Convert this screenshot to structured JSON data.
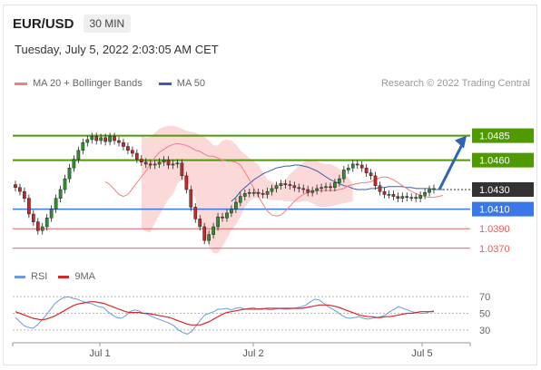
{
  "header": {
    "symbol": "EUR/USD",
    "timeframe": "30 MIN",
    "timestamp": "Tuesday, July 5, 2022 2:03:05 AM CET"
  },
  "legend": {
    "ma20_label": "MA 20 + Bollinger Bands",
    "ma50_label": "MA 50",
    "credit": "Research © 2022 Trading Central"
  },
  "rsi_legend": {
    "rsi_label": "RSI",
    "ma_label": "9MA"
  },
  "colors": {
    "resistance": "#4f9a00",
    "pivot": "#3b78e7",
    "support": "#e06060",
    "current": "#333333",
    "ma20": "#f08080",
    "ma50": "#3a5ea8",
    "bollinger": "#fbd5d5",
    "candle_up": "#2f8f2f",
    "candle_down": "#c62828",
    "arrow": "#2f64b4",
    "rsi": "#6a9be0",
    "rsi_ma": "#d62828"
  },
  "chart_data": [
    {
      "type": "candlestick",
      "title": "EUR/USD",
      "ylim": [
        1.0355,
        1.0505
      ],
      "x_ticks": [
        "Jul 1",
        "Jul 2",
        "Jul 5"
      ],
      "levels": [
        {
          "value": 1.0485,
          "label": "1.0485",
          "kind": "resistance"
        },
        {
          "value": 1.046,
          "label": "1.0460",
          "kind": "resistance"
        },
        {
          "value": 1.043,
          "label": "1.0430",
          "kind": "current"
        },
        {
          "value": 1.041,
          "label": "1.0410",
          "kind": "pivot"
        },
        {
          "value": 1.039,
          "label": "1.0390",
          "kind": "support"
        },
        {
          "value": 1.037,
          "label": "1.0370",
          "kind": "support"
        }
      ],
      "close": [
        1.0432,
        1.0428,
        1.0421,
        1.0405,
        1.0397,
        1.0388,
        1.0392,
        1.0401,
        1.041,
        1.0421,
        1.043,
        1.0441,
        1.0452,
        1.0461,
        1.047,
        1.0478,
        1.0481,
        1.0484,
        1.048,
        1.0483,
        1.0479,
        1.0484,
        1.048,
        1.0478,
        1.0474,
        1.047,
        1.0467,
        1.0461,
        1.0458,
        1.0456,
        1.0455,
        1.0456,
        1.0458,
        1.046,
        1.0455,
        1.0456,
        1.0457,
        1.0444,
        1.043,
        1.0412,
        1.04,
        1.0392,
        1.0378,
        1.0384,
        1.0392,
        1.0402,
        1.0401,
        1.0406,
        1.041,
        1.0417,
        1.0423,
        1.0426,
        1.0427,
        1.0427,
        1.0426,
        1.0425,
        1.0428,
        1.0431,
        1.0434,
        1.0436,
        1.0435,
        1.0434,
        1.0432,
        1.0431,
        1.043,
        1.0427,
        1.0429,
        1.0431,
        1.0432,
        1.0433,
        1.0432,
        1.0437,
        1.0441,
        1.045,
        1.0452,
        1.0456,
        1.0455,
        1.0452,
        1.0447,
        1.0444,
        1.0434,
        1.0428,
        1.0425,
        1.0425,
        1.0423,
        1.0421,
        1.0423,
        1.0422,
        1.0422,
        1.0421,
        1.0424,
        1.0427,
        1.043,
        1.0431
      ],
      "ma20": [
        1.0438,
        1.0435,
        1.043,
        1.0425,
        1.0423,
        1.0425,
        1.0431,
        1.0437,
        1.0443,
        1.0449,
        1.0456,
        1.0463,
        1.0468,
        1.0471,
        1.0474,
        1.0476,
        1.0477,
        1.0476,
        1.0475,
        1.0473,
        1.047,
        1.0469,
        1.0466,
        1.0464,
        1.0464,
        1.0462,
        1.046,
        1.0459,
        1.0459,
        1.0458,
        1.0455,
        1.0448,
        1.044,
        1.0431,
        1.0423,
        1.0415,
        1.0408,
        1.0404,
        1.0403,
        1.0404,
        1.0408,
        1.0413,
        1.0418,
        1.0422,
        1.0425,
        1.0427,
        1.0428,
        1.0429,
        1.0429,
        1.0429,
        1.0429,
        1.0429,
        1.043,
        1.0431,
        1.0434,
        1.0435,
        1.0436,
        1.0437,
        1.0437,
        1.0438,
        1.044,
        1.0442,
        1.0443,
        1.0442,
        1.044,
        1.0437,
        1.0434,
        1.0431,
        1.0428,
        1.0426,
        1.0424,
        1.0423,
        1.0422,
        1.0422,
        1.0423,
        1.0424
      ],
      "ma20_start": 20,
      "bb_upper": [
        1.0485,
        1.0483,
        1.0484,
        1.0488,
        1.0492,
        1.0494,
        1.0495,
        1.0495,
        1.0494,
        1.0492,
        1.049,
        1.0489,
        1.0488,
        1.0486,
        1.0484,
        1.048,
        1.0475,
        1.0475,
        1.048,
        1.0481,
        1.048,
        1.0476,
        1.047,
        1.0466,
        1.0462,
        1.0459,
        1.0455,
        1.0448,
        1.044,
        1.0438,
        1.0436,
        1.0437,
        1.044,
        1.0446,
        1.045,
        1.0454,
        1.0458,
        1.046,
        1.046,
        1.0459,
        1.0457,
        1.0456,
        1.0456,
        1.0454,
        1.0451,
        1.0447,
        1.0442,
        1.0436
      ],
      "bb_lower": [
        1.0391,
        1.0387,
        1.0386,
        1.0396,
        1.0404,
        1.0412,
        1.042,
        1.0425,
        1.0436,
        1.044,
        1.0438,
        1.0434,
        1.042,
        1.04,
        1.0386,
        1.0372,
        1.0365,
        1.0365,
        1.0372,
        1.038,
        1.0388,
        1.0394,
        1.0402,
        1.0412,
        1.0418,
        1.0421,
        1.0422,
        1.0421,
        1.042,
        1.0419,
        1.0419,
        1.0419,
        1.0418,
        1.0418,
        1.0418,
        1.0417,
        1.0418,
        1.0418,
        1.0416,
        1.0413,
        1.0412,
        1.0412,
        1.0413,
        1.0414,
        1.0415,
        1.0416,
        1.0417,
        1.0418
      ],
      "bb_start": 28,
      "ma50": [
        1.0418,
        1.0422,
        1.0428,
        1.0432,
        1.0436,
        1.044,
        1.0443,
        1.0446,
        1.0448,
        1.045,
        1.0452,
        1.0453,
        1.0454,
        1.0454,
        1.0455,
        1.0455,
        1.0454,
        1.0453,
        1.0451,
        1.0449,
        1.0446,
        1.0443,
        1.044,
        1.0438,
        1.0436,
        1.0434,
        1.0433,
        1.0431,
        1.043,
        1.043,
        1.043,
        1.0431,
        1.0431,
        1.0432,
        1.0432,
        1.0433,
        1.0433,
        1.0433,
        1.0433,
        1.0432,
        1.0432,
        1.0431,
        1.0431,
        1.0431,
        1.0431,
        1.043,
        1.043,
        1.043
      ],
      "ma50_start": 48,
      "projection": {
        "from": 1.043,
        "to": 1.0485
      }
    },
    {
      "type": "line",
      "title": "RSI",
      "ylim": [
        20,
        80
      ],
      "y_ticks": [
        70,
        50,
        30
      ],
      "rsi": [
        45,
        40,
        35,
        33,
        32,
        36,
        42,
        48,
        55,
        62,
        66,
        69,
        70,
        68,
        67,
        65,
        63,
        62,
        60,
        58,
        57,
        52,
        48,
        45,
        44,
        47,
        52,
        54,
        53,
        50,
        49,
        46,
        44,
        42,
        40,
        38,
        35,
        30,
        27,
        25,
        28,
        35,
        42,
        48,
        50,
        52,
        55,
        55,
        56,
        54,
        56,
        57,
        55,
        56,
        57,
        55,
        56,
        55,
        54,
        55,
        56,
        55,
        55,
        56,
        57,
        58,
        60,
        64,
        67,
        66,
        62,
        58,
        55,
        52,
        48,
        45,
        44,
        45,
        46,
        44,
        43,
        44,
        45,
        46,
        48,
        52,
        55,
        58,
        56,
        54,
        52,
        51,
        50,
        50,
        52,
        53
      ],
      "rsi_ma": [
        52,
        50,
        48,
        46,
        44,
        43,
        42,
        43,
        45,
        47,
        50,
        53,
        56,
        59,
        61,
        62,
        63,
        64,
        64,
        63,
        62,
        60,
        58,
        56,
        54,
        52,
        51,
        51,
        51,
        50,
        50,
        49,
        48,
        47,
        46,
        45,
        43,
        41,
        39,
        37,
        36,
        36,
        36,
        38,
        40,
        43,
        46,
        49,
        51,
        52,
        53,
        54,
        55,
        55,
        55,
        55,
        55,
        56,
        56,
        56,
        56,
        56,
        56,
        56,
        56,
        56,
        57,
        58,
        59,
        60,
        60,
        60,
        59,
        58,
        56,
        54,
        52,
        50,
        48,
        47,
        46,
        46,
        45,
        45,
        46,
        46,
        47,
        48,
        49,
        50,
        50,
        51,
        52,
        52,
        52,
        52
      ]
    }
  ]
}
